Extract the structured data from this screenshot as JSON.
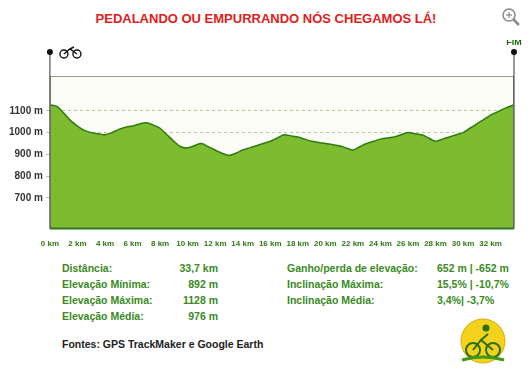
{
  "chart_data": {
    "type": "area",
    "title": "PEDALANDO OU EMPURRANDO NÓS CHEGAMOS LÁ!",
    "annotation": "FIM",
    "x": [
      0,
      0.5,
      1,
      1.5,
      2,
      2.5,
      3,
      3.5,
      4,
      4.5,
      5,
      5.5,
      6,
      6.5,
      7,
      7.5,
      8,
      8.5,
      9,
      9.5,
      10,
      10.5,
      11,
      11.5,
      12,
      12.5,
      13,
      13.5,
      14,
      14.5,
      15,
      15.5,
      16,
      16.5,
      17,
      17.5,
      18,
      18.5,
      19,
      19.5,
      20,
      20.5,
      21,
      21.5,
      22,
      22.5,
      23,
      23.5,
      24,
      24.5,
      25,
      25.5,
      26,
      26.5,
      27,
      27.5,
      28,
      28.5,
      29,
      29.5,
      30,
      30.5,
      31,
      31.5,
      32,
      32.5,
      33,
      33.7
    ],
    "values": [
      1128,
      1120,
      1090,
      1055,
      1030,
      1010,
      1000,
      995,
      990,
      1000,
      1015,
      1025,
      1030,
      1040,
      1045,
      1035,
      1020,
      990,
      960,
      935,
      930,
      940,
      950,
      935,
      920,
      905,
      895,
      905,
      920,
      930,
      940,
      950,
      960,
      975,
      990,
      985,
      980,
      970,
      960,
      955,
      950,
      945,
      940,
      930,
      920,
      935,
      950,
      960,
      970,
      975,
      980,
      990,
      1000,
      995,
      990,
      975,
      960,
      970,
      980,
      990,
      1000,
      1020,
      1040,
      1060,
      1080,
      1095,
      1110,
      1128
    ],
    "color": "#7dbb2f",
    "xlim": [
      0,
      33.7
    ],
    "xticks": [
      {
        "value": 0,
        "label": "0 km"
      },
      {
        "value": 2,
        "label": "2 km"
      },
      {
        "value": 4,
        "label": "4 km"
      },
      {
        "value": 6,
        "label": "6 km"
      },
      {
        "value": 8,
        "label": "8 km"
      },
      {
        "value": 10,
        "label": "10 km"
      },
      {
        "value": 12,
        "label": "12 km"
      },
      {
        "value": 14,
        "label": "14 km"
      },
      {
        "value": 16,
        "label": "16 km"
      },
      {
        "value": 18,
        "label": "18 km"
      },
      {
        "value": 20,
        "label": "20 km"
      },
      {
        "value": 22,
        "label": "22 km"
      },
      {
        "value": 24,
        "label": "24 km"
      },
      {
        "value": 26,
        "label": "26 km"
      },
      {
        "value": 28,
        "label": "28 km"
      },
      {
        "value": 30,
        "label": "30 km"
      },
      {
        "value": 32,
        "label": "32 km"
      }
    ],
    "ylim": [
      560,
      1260
    ],
    "yticks": [
      {
        "value": 700,
        "label": "700 m"
      },
      {
        "value": 800,
        "label": "800 m"
      },
      {
        "value": 900,
        "label": "900 m"
      },
      {
        "value": 1000,
        "label": "1000 m"
      },
      {
        "value": 1100,
        "label": "1100 m"
      }
    ],
    "grid": true
  },
  "stats_left": [
    {
      "label": "Distância:",
      "value": "33,7 km"
    },
    {
      "label": "Elevação Mínima:",
      "value": "892 m"
    },
    {
      "label": "Elevação Máxima:",
      "value": "1128 m"
    },
    {
      "label": "Elevação Média:",
      "value": "976 m"
    }
  ],
  "stats_right": [
    {
      "label": "Ganho/perda de elevação:",
      "value": "652 m | -652 m"
    },
    {
      "label": "Inclinação Máxima:",
      "value": "15,5% | -10,7%"
    },
    {
      "label": "Inclinação Média:",
      "value": "3,4%| -3,7%"
    }
  ],
  "sources": "Fontes: GPS TrackMaker e  Google Earth"
}
